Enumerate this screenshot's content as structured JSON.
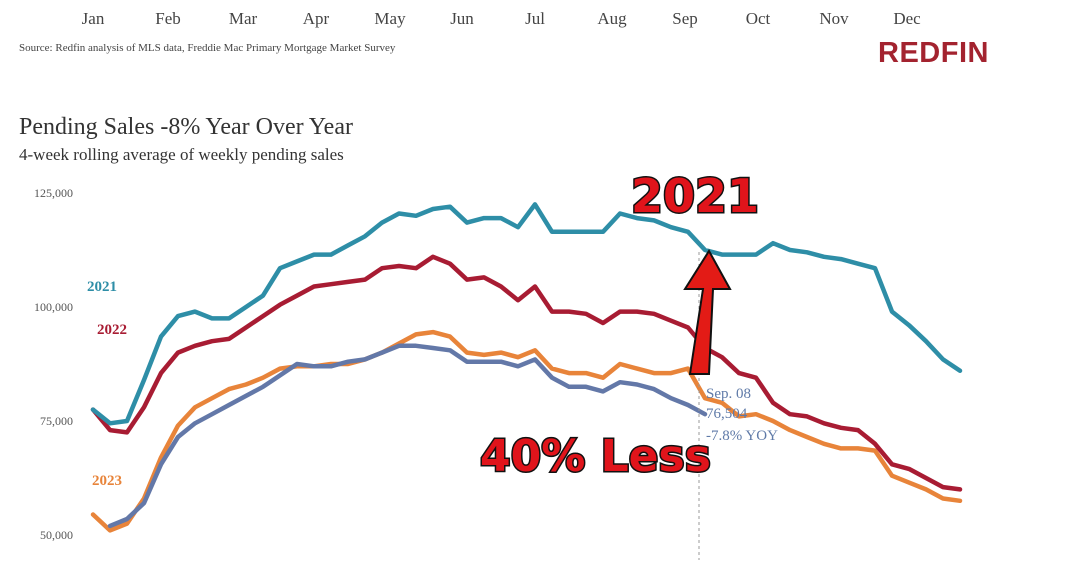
{
  "chart_data": {
    "type": "line",
    "title": "Pending Sales -8% Year Over Year",
    "subtitle": "4-week rolling average of weekly pending sales",
    "source": "Source: Redfin analysis of MLS data, Freddie Mac Primary Mortgage Market Survey",
    "brand": "REDFIN",
    "months": [
      "Jan",
      "Feb",
      "Mar",
      "Apr",
      "May",
      "Jun",
      "Jul",
      "Aug",
      "Sep",
      "Oct",
      "Nov",
      "Dec"
    ],
    "y_ticks": [
      "125,000",
      "100,000",
      "75,000",
      "50,000"
    ],
    "ylim": [
      50000,
      125000
    ],
    "week_range": [
      1,
      52
    ],
    "legend": "inline-left",
    "grid": false,
    "series": [
      {
        "name": "2021",
        "color": "#2e8ea7",
        "values": [
          77500,
          74500,
          75000,
          84000,
          93500,
          98000,
          99000,
          97500,
          97500,
          100000,
          102500,
          108500,
          110000,
          111500,
          111500,
          113500,
          115500,
          118500,
          120500,
          120000,
          121500,
          122000,
          118500,
          119500,
          119500,
          117500,
          122500,
          116500,
          116500,
          116500,
          116500,
          120500,
          119500,
          119000,
          117500,
          116500,
          112500,
          111500,
          111500,
          111500,
          114000,
          112500,
          112000,
          111000,
          110500,
          109500,
          108500,
          99000,
          96000,
          92500,
          88500,
          86000
        ]
      },
      {
        "name": "2022",
        "color": "#a81c33",
        "values": [
          77500,
          73000,
          72500,
          78000,
          85500,
          90000,
          91500,
          92500,
          93000,
          95500,
          98000,
          100500,
          102500,
          104500,
          105000,
          105500,
          106000,
          108500,
          109000,
          108500,
          111000,
          109500,
          106000,
          106500,
          104500,
          101500,
          104500,
          99000,
          99000,
          98500,
          96500,
          99000,
          99000,
          98500,
          97000,
          95500,
          91000,
          89000,
          85500,
          84500,
          79000,
          76500,
          76000,
          74500,
          73500,
          73000,
          70000,
          65500,
          64500,
          62500,
          60500,
          60000
        ]
      },
      {
        "name": "2023",
        "color": "#e8843a",
        "values": [
          54500,
          51000,
          52500,
          58000,
          67000,
          74000,
          78000,
          80000,
          82000,
          83000,
          84500,
          86500,
          87000,
          87000,
          87500,
          87500,
          88500,
          90000,
          92000,
          94000,
          94500,
          93500,
          90000,
          89500,
          90000,
          89000,
          90500,
          86500,
          85500,
          85500,
          84500,
          87500,
          86500,
          85500,
          85500,
          86500,
          80000,
          79000,
          76000,
          76500,
          75000,
          73000,
          71500,
          70000,
          69000,
          69000,
          68500,
          63000,
          61500,
          60000,
          58000,
          57500
        ]
      },
      {
        "name": "",
        "color": "#6378a8",
        "values": [
          null,
          52000,
          53500,
          57000,
          65500,
          71500,
          74500,
          76500,
          78500,
          80500,
          82500,
          85000,
          87500,
          87000,
          87000,
          88000,
          88500,
          90000,
          91500,
          91500,
          91000,
          90500,
          88000,
          88000,
          88000,
          87000,
          88500,
          84500,
          82500,
          82500,
          81500,
          83500,
          83000,
          82000,
          80000,
          78500,
          76500,
          null,
          null,
          null,
          null,
          null,
          null,
          null,
          null,
          null,
          null,
          null,
          null,
          null,
          null,
          null
        ]
      }
    ],
    "tooltip": {
      "date": "Sep. 08",
      "value": "76,504",
      "yoy": "-7.8% YOY"
    },
    "annotations": [
      {
        "text": "2021",
        "color": "#e0141b"
      },
      {
        "text": "40% Less",
        "color": "#e0141b"
      }
    ]
  }
}
